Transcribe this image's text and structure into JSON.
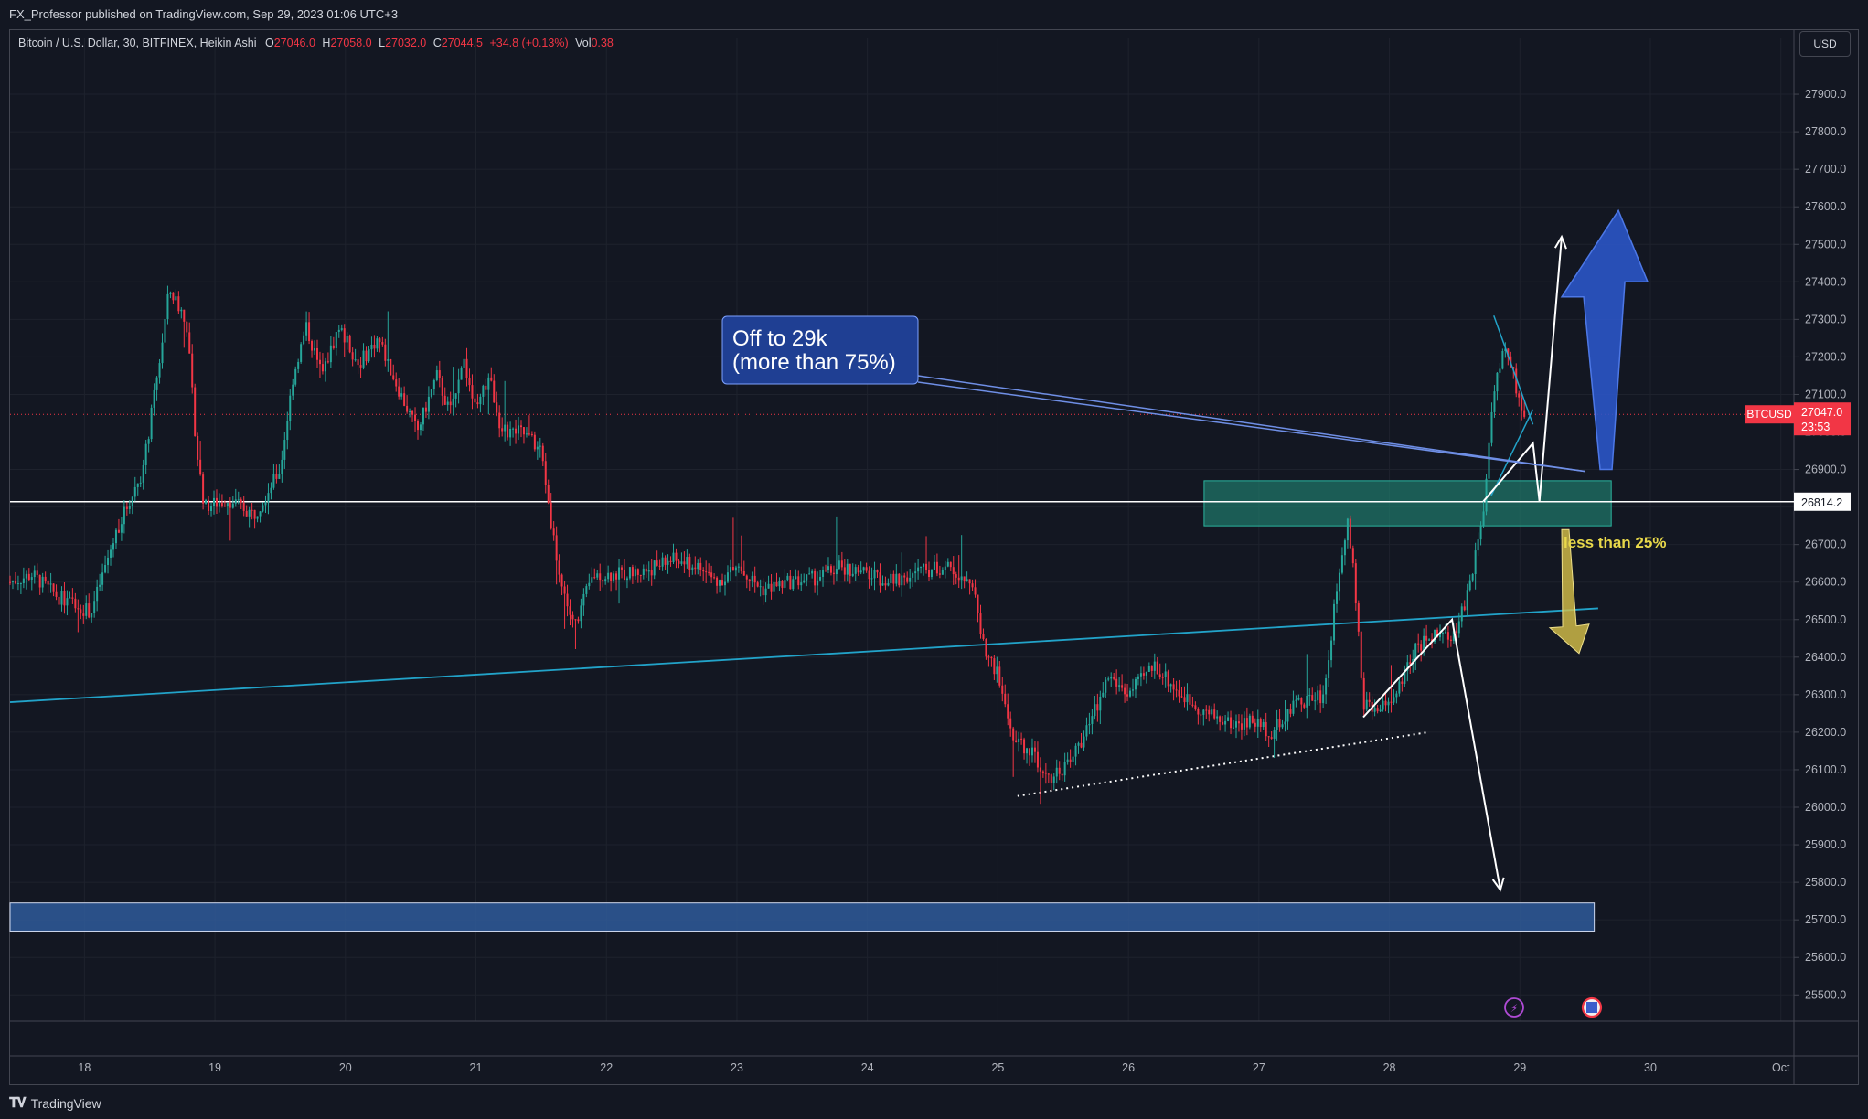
{
  "publisher": "FX_Professor published on TradingView.com, Sep 29, 2023 01:06 UTC+3",
  "legend": {
    "symbol": "Bitcoin / U.S. Dollar, 30, BITFINEX, Heikin Ashi",
    "o_label": "O",
    "o_value": "27046.0",
    "h_label": "H",
    "h_value": "27058.0",
    "l_label": "L",
    "l_value": "27032.0",
    "c_label": "C",
    "c_value": "27044.5",
    "change": "+34.8 (+0.13%)",
    "vol_label": "Vol",
    "vol_value": "0.38"
  },
  "currency": "USD",
  "footer_logo": "TradingView",
  "colors": {
    "background": "#131722",
    "up": "#26a69a",
    "down": "#f23645",
    "grid": "#1e222d",
    "trendline": "#22a3c9",
    "zone_green": "#1f7a6b",
    "zone_blue": "#2f5a9a",
    "callout": "#1f3f93",
    "yellow": "#d8c24a",
    "arrow_blue": "#2b55c7"
  },
  "chart_data": {
    "type": "candlestick",
    "symbol": "BTCUSD",
    "timeframe": "30",
    "ylim": [
      25430,
      28000
    ],
    "y_ticks": [
      25500,
      25600,
      25700,
      25800,
      25900,
      26000,
      26100,
      26200,
      26300,
      26400,
      26500,
      26600,
      26700,
      26800,
      26900,
      27000,
      27100,
      27200,
      27300,
      27400,
      27500,
      27600,
      27700,
      27800,
      27900
    ],
    "y_tick_labels": [
      "25500.0",
      "25600.0",
      "25700.0",
      "25800.0",
      "25900.0",
      "26000.0",
      "26100.0",
      "26200.0",
      "26300.0",
      "26400.0",
      "26500.0",
      "26600.0",
      "26700.0",
      "26800.0",
      "26900.0",
      "27000.0",
      "27100.0",
      "27200.0",
      "27300.0",
      "27400.0",
      "27500.0",
      "27600.0",
      "27700.0",
      "27800.0",
      "27900.0"
    ],
    "x_ticks": [
      18,
      19,
      20,
      21,
      22,
      23,
      24,
      25,
      26,
      27,
      28,
      29,
      30,
      31
    ],
    "x_tick_labels": [
      "18",
      "19",
      "20",
      "21",
      "22",
      "23",
      "24",
      "25",
      "26",
      "27",
      "28",
      "29",
      "30",
      "Oct"
    ],
    "xlim": [
      17.43,
      31.1
    ],
    "price_path": [
      [
        17.43,
        26600
      ],
      [
        17.6,
        26620
      ],
      [
        17.8,
        26560
      ],
      [
        18.05,
        26520
      ],
      [
        18.25,
        26740
      ],
      [
        18.45,
        26900
      ],
      [
        18.58,
        27200
      ],
      [
        18.65,
        27380
      ],
      [
        18.78,
        27300
      ],
      [
        18.86,
        26950
      ],
      [
        18.92,
        26800
      ],
      [
        19.1,
        26820
      ],
      [
        19.3,
        26780
      ],
      [
        19.5,
        26900
      ],
      [
        19.6,
        27150
      ],
      [
        19.7,
        27280
      ],
      [
        19.82,
        27150
      ],
      [
        19.95,
        27280
      ],
      [
        20.1,
        27180
      ],
      [
        20.25,
        27250
      ],
      [
        20.4,
        27120
      ],
      [
        20.55,
        27000
      ],
      [
        20.7,
        27150
      ],
      [
        20.8,
        27050
      ],
      [
        20.9,
        27200
      ],
      [
        21.0,
        27050
      ],
      [
        21.1,
        27150
      ],
      [
        21.2,
        27000
      ],
      [
        21.35,
        27000
      ],
      [
        21.5,
        26950
      ],
      [
        21.58,
        26750
      ],
      [
        21.65,
        26600
      ],
      [
        21.75,
        26480
      ],
      [
        21.9,
        26620
      ],
      [
        22.1,
        26620
      ],
      [
        22.3,
        26630
      ],
      [
        22.5,
        26660
      ],
      [
        22.7,
        26640
      ],
      [
        22.85,
        26600
      ],
      [
        23.0,
        26640
      ],
      [
        23.2,
        26580
      ],
      [
        23.4,
        26600
      ],
      [
        23.6,
        26610
      ],
      [
        23.8,
        26640
      ],
      [
        24.0,
        26620
      ],
      [
        24.2,
        26600
      ],
      [
        24.4,
        26630
      ],
      [
        24.6,
        26640
      ],
      [
        24.78,
        26610
      ],
      [
        24.82,
        26560
      ],
      [
        24.9,
        26420
      ],
      [
        25.0,
        26350
      ],
      [
        25.12,
        26180
      ],
      [
        25.25,
        26150
      ],
      [
        25.4,
        26080
      ],
      [
        25.55,
        26120
      ],
      [
        25.7,
        26220
      ],
      [
        25.85,
        26350
      ],
      [
        26.0,
        26300
      ],
      [
        26.2,
        26380
      ],
      [
        26.4,
        26300
      ],
      [
        26.6,
        26250
      ],
      [
        26.8,
        26220
      ],
      [
        26.95,
        26230
      ],
      [
        27.1,
        26200
      ],
      [
        27.3,
        26280
      ],
      [
        27.5,
        26300
      ],
      [
        27.62,
        26650
      ],
      [
        27.68,
        26770
      ],
      [
        27.72,
        26650
      ],
      [
        27.8,
        26280
      ],
      [
        27.9,
        26250
      ],
      [
        28.05,
        26300
      ],
      [
        28.2,
        26420
      ],
      [
        28.35,
        26460
      ],
      [
        28.5,
        26450
      ],
      [
        28.62,
        26600
      ],
      [
        28.72,
        26790
      ],
      [
        28.8,
        27120
      ],
      [
        28.88,
        27220
      ],
      [
        28.95,
        27150
      ],
      [
        29.02,
        27050
      ],
      [
        29.05,
        27047
      ]
    ],
    "last_price": 27047.0,
    "last_price_label": "27047.0",
    "countdown": "23:53",
    "symbol_badge": "BTCUSD",
    "horizontal_line": 26814.2,
    "horizontal_line_label": "26814.2",
    "zones": [
      {
        "name": "green-zone",
        "x0": 26.58,
        "x1": 29.7,
        "y0": 26750,
        "y1": 26870
      },
      {
        "name": "blue-zone",
        "x0": 17.43,
        "x1": 29.57,
        "y0": 25670,
        "y1": 25745
      }
    ],
    "trendlines": [
      {
        "name": "cyan-trendline",
        "x0": 17.43,
        "y0": 26280,
        "x1": 29.6,
        "y1": 26530
      },
      {
        "name": "dotted-support-line",
        "x0": 25.15,
        "y0": 26030,
        "x1": 28.3,
        "y1": 26200,
        "dotted": true
      }
    ],
    "annotations": [
      {
        "name": "callout-text",
        "lines": [
          "Off to 29k",
          "(more than 75%)"
        ]
      },
      {
        "name": "yellow-label",
        "text": "less than 25%"
      }
    ],
    "grid": true
  }
}
